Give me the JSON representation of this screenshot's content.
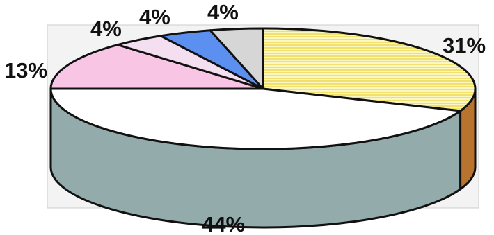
{
  "chart_data": {
    "type": "pie",
    "three_d": true,
    "start": "12 o'clock",
    "direction": "clockwise",
    "slices": [
      {
        "label": "31%",
        "value": 31,
        "color": "#f7f2a3",
        "pattern": "horizontal-stripes",
        "side_color": "#b8742e"
      },
      {
        "label": "44%",
        "value": 44,
        "color": "#ffffff",
        "side_color": "#94abab"
      },
      {
        "label": "13%",
        "value": 13,
        "color": "#f8c6e4"
      },
      {
        "label": "4%",
        "value": 4,
        "color": "#f3dfef"
      },
      {
        "label": "4%",
        "value": 4,
        "color": "#5b8ff0"
      },
      {
        "label": "4%",
        "value": 4,
        "color": "#d6d6d6"
      }
    ]
  }
}
